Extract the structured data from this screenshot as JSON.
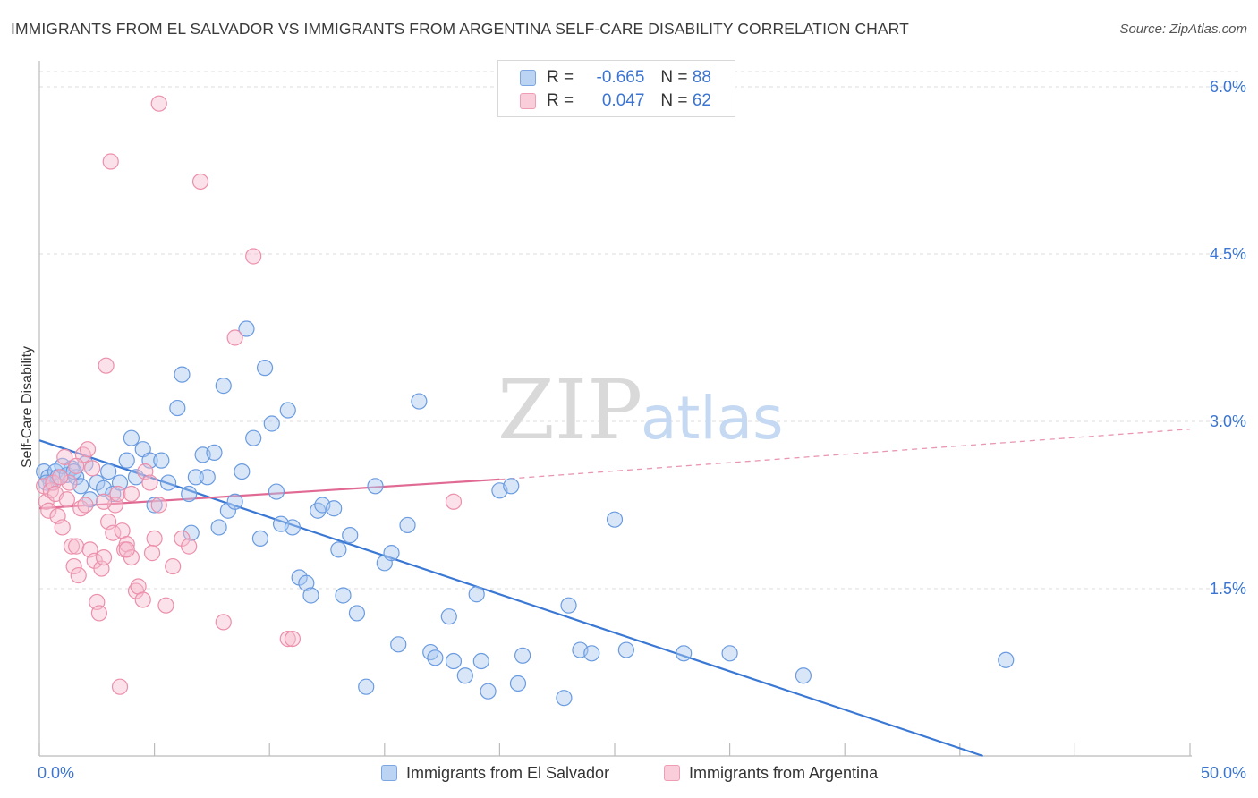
{
  "title": "IMMIGRANTS FROM EL SALVADOR VS IMMIGRANTS FROM ARGENTINA SELF-CARE DISABILITY CORRELATION CHART",
  "source": "Source: ZipAtlas.com",
  "watermark": {
    "zip": "ZIP",
    "atlas": "atlas"
  },
  "legend": {
    "rows": [
      {
        "r_label": "R =",
        "r_value": "-0.665",
        "n_label": "N =",
        "n_value": "88"
      },
      {
        "r_label": "R =",
        "r_value": "0.047",
        "n_label": "N =",
        "n_value": "62"
      }
    ]
  },
  "bottom_legend": {
    "series1": "Immigrants from El Salvador",
    "series2": "Immigrants from Argentina"
  },
  "colors": {
    "blue_fill": "#a9c8f0",
    "blue_stroke": "#6a9be0",
    "blue_line": "#3a78d4",
    "pink_fill": "#f7bfd0",
    "pink_stroke": "#ec8fab",
    "pink_line": "#e06a93",
    "axis_label": "#3b75d1",
    "grid": "#dcdcdc"
  },
  "chart_data": {
    "type": "scatter",
    "xlabel": "",
    "ylabel": "Self-Care Disability",
    "xlim": [
      0,
      50
    ],
    "ylim": [
      0,
      6.2
    ],
    "x_tick_labels": [
      {
        "value": 0,
        "label": "0.0%"
      },
      {
        "value": 50,
        "label": "50.0%"
      }
    ],
    "y_tick_labels": [
      {
        "value": 1.5,
        "label": "1.5%"
      },
      {
        "value": 3.0,
        "label": "3.0%"
      },
      {
        "value": 4.5,
        "label": "4.5%"
      },
      {
        "value": 6.0,
        "label": "6.0%"
      }
    ],
    "x_minor_ticks": [
      0,
      5,
      10,
      15,
      20,
      25,
      30,
      35,
      40,
      45,
      50
    ],
    "grid": true,
    "series": [
      {
        "name": "Immigrants from El Salvador",
        "color": "blue",
        "trend": {
          "x0": 0,
          "y0": 2.83,
          "x1": 41,
          "y1": 0.0,
          "dashed_to": null
        },
        "points": [
          [
            0.2,
            2.55
          ],
          [
            0.4,
            2.5
          ],
          [
            0.5,
            2.45
          ],
          [
            0.7,
            2.55
          ],
          [
            0.8,
            2.5
          ],
          [
            1.0,
            2.6
          ],
          [
            1.2,
            2.52
          ],
          [
            1.4,
            2.58
          ],
          [
            1.6,
            2.5
          ],
          [
            1.8,
            2.42
          ],
          [
            2.0,
            2.62
          ],
          [
            2.2,
            2.3
          ],
          [
            2.5,
            2.45
          ],
          [
            2.8,
            2.4
          ],
          [
            3.0,
            2.55
          ],
          [
            3.2,
            2.35
          ],
          [
            3.5,
            2.45
          ],
          [
            3.8,
            2.65
          ],
          [
            4.0,
            2.85
          ],
          [
            4.2,
            2.5
          ],
          [
            4.5,
            2.75
          ],
          [
            4.8,
            2.65
          ],
          [
            5.0,
            2.25
          ],
          [
            5.3,
            2.65
          ],
          [
            5.6,
            2.45
          ],
          [
            6.0,
            3.12
          ],
          [
            6.2,
            3.42
          ],
          [
            6.5,
            2.35
          ],
          [
            6.6,
            2.0
          ],
          [
            6.8,
            2.5
          ],
          [
            7.1,
            2.7
          ],
          [
            7.3,
            2.5
          ],
          [
            7.6,
            2.72
          ],
          [
            7.8,
            2.05
          ],
          [
            8.0,
            3.32
          ],
          [
            8.2,
            2.2
          ],
          [
            8.5,
            2.28
          ],
          [
            8.8,
            2.55
          ],
          [
            9.0,
            3.83
          ],
          [
            9.3,
            2.85
          ],
          [
            9.6,
            1.95
          ],
          [
            9.8,
            3.48
          ],
          [
            10.1,
            2.98
          ],
          [
            10.3,
            2.37
          ],
          [
            10.5,
            2.08
          ],
          [
            10.8,
            3.1
          ],
          [
            11.0,
            2.05
          ],
          [
            11.3,
            1.6
          ],
          [
            11.6,
            1.55
          ],
          [
            11.8,
            1.44
          ],
          [
            12.1,
            2.2
          ],
          [
            12.3,
            2.25
          ],
          [
            12.8,
            2.22
          ],
          [
            13.0,
            1.85
          ],
          [
            13.2,
            1.44
          ],
          [
            13.5,
            1.98
          ],
          [
            13.8,
            1.28
          ],
          [
            14.2,
            0.62
          ],
          [
            14.6,
            2.42
          ],
          [
            15.0,
            1.73
          ],
          [
            15.3,
            1.82
          ],
          [
            15.6,
            1.0
          ],
          [
            16.0,
            2.07
          ],
          [
            16.5,
            3.18
          ],
          [
            17.0,
            0.93
          ],
          [
            17.2,
            0.88
          ],
          [
            17.8,
            1.25
          ],
          [
            18.0,
            0.85
          ],
          [
            18.5,
            0.72
          ],
          [
            19.0,
            1.45
          ],
          [
            19.2,
            0.85
          ],
          [
            19.5,
            0.58
          ],
          [
            20.0,
            2.38
          ],
          [
            20.5,
            2.42
          ],
          [
            20.8,
            0.65
          ],
          [
            21.0,
            0.9
          ],
          [
            22.8,
            0.52
          ],
          [
            23.0,
            1.35
          ],
          [
            23.5,
            0.95
          ],
          [
            24.0,
            0.92
          ],
          [
            25.0,
            2.12
          ],
          [
            25.5,
            0.95
          ],
          [
            28.0,
            0.92
          ],
          [
            30.0,
            0.92
          ],
          [
            33.2,
            0.72
          ],
          [
            42.0,
            0.86
          ],
          [
            1.5,
            2.55
          ],
          [
            0.3,
            2.45
          ]
        ]
      },
      {
        "name": "Immigrants from Argentina",
        "color": "pink",
        "trend": {
          "x0": 0,
          "y0": 2.22,
          "x1": 20,
          "y1": 2.48,
          "dashed_to": {
            "x": 50,
            "y": 2.93
          }
        },
        "points": [
          [
            0.2,
            2.42
          ],
          [
            0.3,
            2.28
          ],
          [
            0.4,
            2.2
          ],
          [
            0.5,
            2.38
          ],
          [
            0.6,
            2.45
          ],
          [
            0.7,
            2.35
          ],
          [
            0.8,
            2.15
          ],
          [
            1.0,
            2.05
          ],
          [
            1.1,
            2.68
          ],
          [
            1.2,
            2.3
          ],
          [
            1.3,
            2.45
          ],
          [
            1.4,
            1.88
          ],
          [
            1.5,
            1.7
          ],
          [
            1.6,
            1.88
          ],
          [
            1.7,
            1.62
          ],
          [
            1.8,
            2.22
          ],
          [
            1.9,
            2.7
          ],
          [
            2.0,
            2.25
          ],
          [
            2.1,
            2.75
          ],
          [
            2.2,
            1.85
          ],
          [
            2.3,
            2.58
          ],
          [
            2.4,
            1.75
          ],
          [
            2.5,
            1.38
          ],
          [
            2.6,
            1.28
          ],
          [
            2.7,
            1.68
          ],
          [
            2.8,
            1.78
          ],
          [
            2.9,
            3.5
          ],
          [
            3.0,
            2.1
          ],
          [
            3.1,
            5.33
          ],
          [
            3.2,
            2.0
          ],
          [
            3.3,
            2.25
          ],
          [
            3.4,
            2.35
          ],
          [
            3.5,
            0.62
          ],
          [
            3.6,
            2.02
          ],
          [
            3.7,
            1.85
          ],
          [
            3.8,
            1.9
          ],
          [
            4.0,
            1.78
          ],
          [
            4.2,
            1.48
          ],
          [
            4.3,
            1.52
          ],
          [
            4.5,
            1.4
          ],
          [
            4.6,
            2.55
          ],
          [
            4.8,
            2.45
          ],
          [
            5.0,
            1.95
          ],
          [
            5.2,
            2.25
          ],
          [
            5.5,
            1.35
          ],
          [
            5.8,
            1.7
          ],
          [
            5.2,
            5.85
          ],
          [
            6.2,
            1.95
          ],
          [
            6.5,
            1.88
          ],
          [
            7.0,
            5.15
          ],
          [
            8.0,
            1.2
          ],
          [
            8.5,
            3.75
          ],
          [
            9.3,
            4.48
          ],
          [
            10.8,
            1.05
          ],
          [
            11.0,
            1.05
          ],
          [
            18.0,
            2.28
          ],
          [
            3.8,
            1.85
          ],
          [
            4.0,
            2.35
          ],
          [
            2.8,
            2.28
          ],
          [
            0.9,
            2.5
          ],
          [
            1.6,
            2.6
          ],
          [
            4.9,
            1.82
          ]
        ]
      }
    ]
  }
}
